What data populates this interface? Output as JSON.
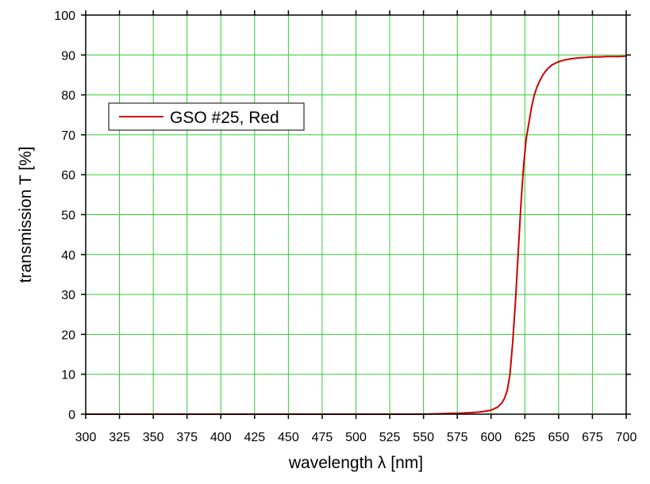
{
  "chart_data": {
    "type": "line",
    "title": "",
    "xlabel": "wavelength λ [nm]",
    "ylabel": "transmission T [%]",
    "xlim": [
      300,
      700
    ],
    "ylim": [
      0,
      100
    ],
    "xticks": [
      300,
      325,
      350,
      375,
      400,
      425,
      450,
      475,
      500,
      525,
      550,
      575,
      600,
      625,
      650,
      675,
      700
    ],
    "yticks": [
      0,
      10,
      20,
      30,
      40,
      50,
      60,
      70,
      80,
      90,
      100
    ],
    "grid": true,
    "grid_color": "#33cc33",
    "legend_position": "upper-left",
    "series": [
      {
        "name": "GSO #25, Red",
        "color": "#cc0000",
        "x": [
          300,
          350,
          400,
          450,
          500,
          550,
          560,
          570,
          580,
          590,
          595,
          600,
          605,
          608,
          610,
          612,
          614,
          616,
          618,
          620,
          622,
          624,
          626,
          628,
          630,
          632,
          634,
          636,
          638,
          640,
          642,
          645,
          648,
          650,
          655,
          660,
          665,
          670,
          675,
          680,
          685,
          690,
          695,
          700
        ],
        "y": [
          0,
          0,
          0,
          0,
          0,
          0,
          0.1,
          0.2,
          0.3,
          0.5,
          0.7,
          1.0,
          1.8,
          2.8,
          4.0,
          6.0,
          10,
          18,
          28,
          40,
          52,
          62,
          69,
          73,
          77,
          80,
          82,
          83.5,
          84.8,
          85.8,
          86.6,
          87.5,
          88.0,
          88.3,
          88.8,
          89.1,
          89.3,
          89.4,
          89.5,
          89.5,
          89.6,
          89.6,
          89.6,
          89.7
        ]
      }
    ]
  }
}
